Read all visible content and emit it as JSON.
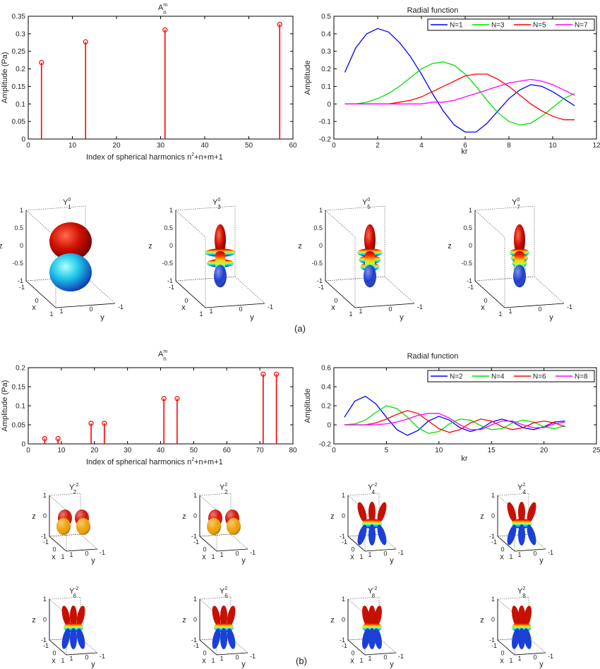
{
  "colors": {
    "stem": "#ff0000",
    "axis": "#000000",
    "series": [
      "#0000ff",
      "#00e000",
      "#ff0000",
      "#ff00ff"
    ]
  },
  "captions": {
    "a": "(a)",
    "b": "(b)"
  },
  "panel_a": {
    "coeff": {
      "title_base": "A",
      "title_sup": "m",
      "title_sub": "n",
      "ylabel": "Amplitude (Pa)",
      "xlabel_parts": [
        "Index of spherical harmonics n",
        "2",
        "+n+m+1"
      ],
      "xticks": [
        "0",
        "10",
        "20",
        "30",
        "40",
        "50",
        "60"
      ],
      "yticks": [
        "0",
        "0.05",
        "0.1",
        "0.15",
        "0.2",
        "0.25",
        "0.3",
        "0.35"
      ]
    },
    "radial": {
      "title": "Radial function",
      "ylabel": "Amplitude",
      "xlabel": "kr",
      "legend": [
        "N=1",
        "N=3",
        "N=5",
        "N=7"
      ],
      "xticks": [
        "0",
        "2",
        "4",
        "6",
        "8",
        "10",
        "12"
      ],
      "yticks": [
        "-0.2",
        "-0.1",
        "0",
        "0.1",
        "0.2",
        "0.3",
        "0.4",
        "0.5"
      ]
    },
    "harmonics": [
      {
        "base": "Y",
        "sup": "0",
        "sub": "1"
      },
      {
        "base": "Y",
        "sup": "0",
        "sub": "3"
      },
      {
        "base": "Y",
        "sup": "0",
        "sub": "5"
      },
      {
        "base": "Y",
        "sup": "0",
        "sub": "7"
      }
    ],
    "axes3d": {
      "x": "x",
      "y": "y",
      "z": "z",
      "zticks": [
        "1",
        "0.5",
        "0",
        "-0.5",
        "-1"
      ],
      "xticks": [
        "-1",
        "0",
        "1"
      ],
      "yticks": [
        "-1",
        "0",
        "1"
      ]
    }
  },
  "panel_b": {
    "coeff": {
      "title_base": "A",
      "title_sup": "m",
      "title_sub": "n",
      "ylabel": "Amplitude (Pa)",
      "xlabel_parts": [
        "Index of spherical harmonics n",
        "2",
        "+n+m+1"
      ],
      "xticks": [
        "0",
        "10",
        "20",
        "30",
        "40",
        "50",
        "60",
        "70",
        "80"
      ],
      "yticks": [
        "0",
        "0.05",
        "0.1",
        "0.15",
        "0.2"
      ]
    },
    "radial": {
      "title": "Radial function",
      "ylabel": "Amplitude",
      "xlabel": "kr",
      "legend": [
        "N=2",
        "N=4",
        "N=6",
        "N=8"
      ],
      "xticks": [
        "0",
        "5",
        "10",
        "15",
        "20",
        "25"
      ],
      "yticks": [
        "-0.2",
        "0",
        "0.2",
        "0.4",
        "0.6"
      ]
    },
    "harmonics": [
      {
        "base": "Y",
        "sup": "-2",
        "sub": "2"
      },
      {
        "base": "Y",
        "sup": "2",
        "sub": "2"
      },
      {
        "base": "Y",
        "sup": "-2",
        "sub": "4"
      },
      {
        "base": "Y",
        "sup": "2",
        "sub": "4"
      },
      {
        "base": "Y",
        "sup": "-2",
        "sub": "6"
      },
      {
        "base": "Y",
        "sup": "2",
        "sub": "6"
      },
      {
        "base": "Y",
        "sup": "-2",
        "sub": "8"
      },
      {
        "base": "Y",
        "sup": "2",
        "sub": "8"
      }
    ],
    "axes3d": {
      "x": "x",
      "y": "y",
      "z": "z",
      "zticks": [
        "1",
        "0",
        "-1"
      ],
      "xticks": [
        "-1",
        "0",
        "1"
      ],
      "yticks": [
        "-1",
        "0",
        "1"
      ]
    }
  },
  "chart_data": [
    {
      "type": "bar",
      "panel": "a-coefficients",
      "title": "A_n^m",
      "xlabel": "Index of spherical harmonics n^2+n+m+1",
      "ylabel": "Amplitude (Pa)",
      "x": [
        3,
        13,
        31,
        57
      ],
      "values": [
        0.218,
        0.277,
        0.311,
        0.327
      ],
      "xlim": [
        0,
        60
      ],
      "ylim": [
        0,
        0.35
      ]
    },
    {
      "type": "line",
      "panel": "a-radial",
      "title": "Radial function",
      "xlabel": "kr",
      "ylabel": "Amplitude",
      "xlim": [
        0,
        12
      ],
      "ylim": [
        -0.2,
        0.5
      ],
      "x": [
        0.5,
        1,
        1.5,
        2,
        2.5,
        3,
        3.5,
        4,
        4.5,
        5,
        5.5,
        6,
        6.5,
        7,
        7.5,
        8,
        8.5,
        9,
        9.5,
        10,
        10.5,
        11
      ],
      "series": [
        {
          "name": "N=1",
          "values": [
            0.18,
            0.32,
            0.4,
            0.43,
            0.41,
            0.35,
            0.27,
            0.17,
            0.06,
            -0.04,
            -0.12,
            -0.16,
            -0.16,
            -0.11,
            -0.04,
            0.03,
            0.08,
            0.11,
            0.1,
            0.07,
            0.03,
            -0.01
          ]
        },
        {
          "name": "N=3",
          "values": [
            0.0,
            0.0,
            0.01,
            0.03,
            0.06,
            0.1,
            0.15,
            0.2,
            0.23,
            0.24,
            0.22,
            0.17,
            0.1,
            0.02,
            -0.05,
            -0.1,
            -0.12,
            -0.11,
            -0.07,
            -0.02,
            0.03,
            0.06
          ]
        },
        {
          "name": "N=5",
          "values": [
            0.0,
            0.0,
            0.0,
            0.0,
            0.0,
            0.01,
            0.02,
            0.04,
            0.07,
            0.1,
            0.13,
            0.16,
            0.17,
            0.17,
            0.14,
            0.1,
            0.05,
            0.0,
            -0.04,
            -0.07,
            -0.09,
            -0.09
          ]
        },
        {
          "name": "N=7",
          "values": [
            0.0,
            0.0,
            0.0,
            0.0,
            0.0,
            0.0,
            0.0,
            0.0,
            0.01,
            0.01,
            0.02,
            0.04,
            0.06,
            0.08,
            0.1,
            0.12,
            0.13,
            0.14,
            0.13,
            0.11,
            0.08,
            0.05
          ]
        }
      ]
    },
    {
      "type": "bar",
      "panel": "b-coefficients",
      "title": "A_n^m",
      "xlabel": "Index of spherical harmonics n^2+n+m+1",
      "ylabel": "Amplitude (Pa)",
      "x": [
        5,
        9,
        19,
        23,
        41,
        45,
        71,
        75
      ],
      "values": [
        0.014,
        0.014,
        0.054,
        0.054,
        0.119,
        0.119,
        0.183,
        0.183
      ],
      "xlim": [
        0,
        80
      ],
      "ylim": [
        0,
        0.2
      ]
    },
    {
      "type": "line",
      "panel": "b-radial",
      "title": "Radial function",
      "xlabel": "kr",
      "ylabel": "Amplitude",
      "xlim": [
        0,
        25
      ],
      "ylim": [
        -0.2,
        0.6
      ],
      "x": [
        1,
        2,
        3,
        4,
        5,
        6,
        7,
        8,
        9,
        10,
        11,
        12,
        13,
        14,
        15,
        16,
        17,
        18,
        19,
        20,
        21,
        22
      ],
      "series": [
        {
          "name": "N=2",
          "values": [
            0.08,
            0.25,
            0.3,
            0.22,
            0.08,
            -0.05,
            -0.11,
            -0.06,
            0.04,
            0.09,
            0.05,
            -0.03,
            -0.07,
            -0.04,
            0.03,
            0.06,
            0.03,
            -0.03,
            -0.05,
            -0.02,
            0.03,
            0.04
          ]
        },
        {
          "name": "N=4",
          "values": [
            0.0,
            0.01,
            0.05,
            0.13,
            0.2,
            0.17,
            0.08,
            -0.03,
            -0.09,
            -0.07,
            0.01,
            0.06,
            0.05,
            -0.01,
            -0.05,
            -0.04,
            0.02,
            0.05,
            0.03,
            -0.02,
            -0.04,
            -0.01
          ]
        },
        {
          "name": "N=6",
          "values": [
            0.0,
            0.0,
            0.0,
            0.02,
            0.06,
            0.11,
            0.15,
            0.12,
            0.04,
            -0.04,
            -0.08,
            -0.05,
            0.02,
            0.06,
            0.04,
            -0.02,
            -0.05,
            -0.03,
            0.02,
            0.04,
            0.02,
            -0.02
          ]
        },
        {
          "name": "N=8",
          "values": [
            0.0,
            0.0,
            0.0,
            0.0,
            0.01,
            0.03,
            0.06,
            0.1,
            0.12,
            0.12,
            0.07,
            0.0,
            -0.05,
            -0.05,
            0.0,
            0.04,
            0.04,
            0.0,
            -0.03,
            -0.03,
            0.01,
            0.03
          ]
        }
      ]
    }
  ]
}
